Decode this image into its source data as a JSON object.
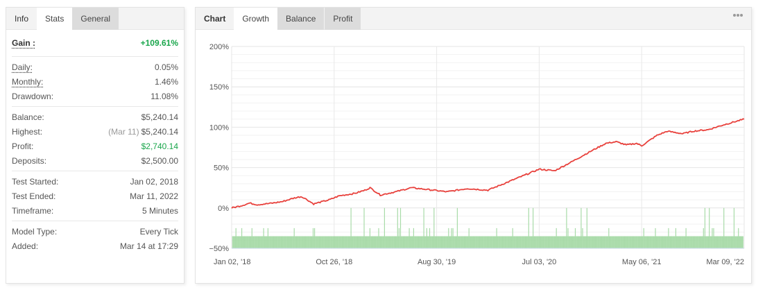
{
  "left_panel": {
    "tabs": [
      {
        "label": "Info",
        "state": "static"
      },
      {
        "label": "Stats",
        "state": "active"
      },
      {
        "label": "General",
        "state": "inactive"
      }
    ],
    "gain": {
      "label": "Gain :",
      "value": "+109.61%"
    },
    "rates": [
      {
        "label": "Daily:",
        "value": "0.05%"
      },
      {
        "label": "Monthly:",
        "value": "1.46%"
      },
      {
        "label": "Drawdown:",
        "value": "11.08%"
      }
    ],
    "balance": {
      "balance_label": "Balance:",
      "balance_value": "$5,240.14",
      "highest_label": "Highest:",
      "highest_date": "(Mar 11)",
      "highest_value": "$5,240.14",
      "profit_label": "Profit:",
      "profit_value": "$2,740.14",
      "deposits_label": "Deposits:",
      "deposits_value": "$2,500.00"
    },
    "test": {
      "started_label": "Test Started:",
      "started_value": "Jan 02, 2018",
      "ended_label": "Test Ended:",
      "ended_value": "Mar 11, 2022",
      "timeframe_label": "Timeframe:",
      "timeframe_value": "5 Minutes"
    },
    "model": {
      "type_label": "Model Type:",
      "type_value": "Every Tick",
      "added_label": "Added:",
      "added_value": "Mar 14 at 17:29"
    }
  },
  "right_panel": {
    "tabs": [
      {
        "label": "Chart",
        "state": "static"
      },
      {
        "label": "Growth",
        "state": "active"
      },
      {
        "label": "Balance",
        "state": "inactive"
      },
      {
        "label": "Profit",
        "state": "inactive"
      }
    ],
    "menu_icon": "more-dots-icon"
  },
  "colors": {
    "growth_line": "#e8413c",
    "bars": "#a8dba8",
    "positive": "#19a64b",
    "grid": "#e6e6e6"
  },
  "chart_data": {
    "type": "line",
    "title": "Growth",
    "xlabel": "",
    "ylabel": "",
    "ylim": [
      -50,
      200
    ],
    "yticks": [
      "200%",
      "150%",
      "100%",
      "50%",
      "0%",
      "-50%"
    ],
    "xticks": [
      "Jan 02, '18",
      "Oct 26, '18",
      "Aug 30, '19",
      "Jul 03, '20",
      "May 06, '21",
      "Mar 09, '22"
    ],
    "grid": true,
    "legend": "none",
    "series": [
      {
        "name": "Growth",
        "x_frac": [
          0,
          0.02,
          0.035,
          0.05,
          0.08,
          0.1,
          0.12,
          0.135,
          0.14,
          0.16,
          0.19,
          0.21,
          0.24,
          0.26,
          0.27,
          0.29,
          0.32,
          0.35,
          0.38,
          0.42,
          0.46,
          0.5,
          0.55,
          0.6,
          0.63,
          0.66,
          0.7,
          0.73,
          0.75,
          0.77,
          0.79,
          0.8,
          0.83,
          0.85,
          0.88,
          0.9,
          0.93,
          0.96,
          1.0
        ],
        "values": [
          0,
          3,
          6,
          4,
          6,
          8,
          12,
          14,
          13,
          5,
          10,
          15,
          18,
          22,
          25,
          16,
          20,
          25,
          23,
          20,
          24,
          22,
          35,
          48,
          46,
          56,
          70,
          80,
          82,
          78,
          80,
          77,
          90,
          95,
          92,
          95,
          97,
          103,
          110
        ]
      },
      {
        "name": "Trades (bars)",
        "type": "bar",
        "baseline": -50,
        "typical_height": -35,
        "spikes": [
          -25,
          0
        ]
      }
    ]
  }
}
